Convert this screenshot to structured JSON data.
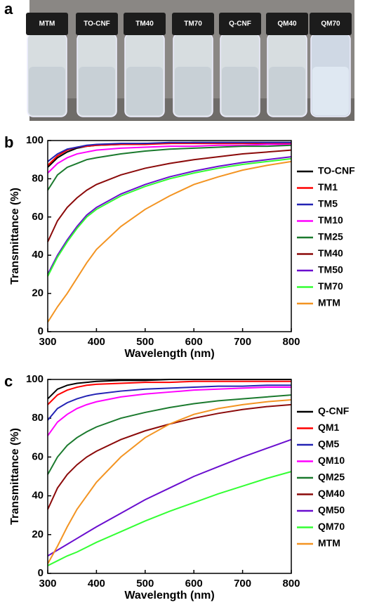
{
  "photo": {
    "panel_label": "a",
    "vials": [
      "MTM",
      "TO-CNF",
      "TM40",
      "TM70",
      "Q-CNF",
      "QM40",
      "QM70"
    ]
  },
  "chart_data": [
    {
      "type": "line",
      "panel_label": "b",
      "x_label": "Wavelength (nm)",
      "y_label": "Transmittance (%)",
      "xlim": [
        300,
        800
      ],
      "ylim": [
        0,
        100
      ],
      "xticks": [
        300,
        400,
        500,
        600,
        700,
        800
      ],
      "yticks": [
        0,
        20,
        40,
        60,
        80,
        100
      ],
      "grid": false,
      "legend": "right",
      "x": [
        300,
        320,
        340,
        360,
        380,
        400,
        450,
        500,
        550,
        600,
        650,
        700,
        750,
        800
      ],
      "series": [
        {
          "name": "TO-CNF",
          "color": "#000000",
          "values": [
            86,
            91,
            94,
            96,
            97,
            97.5,
            98,
            98.5,
            98.5,
            99,
            99,
            99,
            99,
            99
          ]
        },
        {
          "name": "TM1",
          "color": "#ff0000",
          "values": [
            87,
            92,
            95,
            96.5,
            97,
            97.5,
            98,
            98,
            98.5,
            98.5,
            98.5,
            98.5,
            98.5,
            98.5
          ]
        },
        {
          "name": "TM5",
          "color": "#2323b4",
          "values": [
            89,
            93,
            95.5,
            96.5,
            97.5,
            98,
            98.5,
            98.5,
            99,
            99,
            99,
            99,
            99,
            99
          ]
        },
        {
          "name": "TM10",
          "color": "#ff00ff",
          "values": [
            83,
            88,
            91,
            93,
            94,
            95,
            96,
            96.5,
            97,
            97,
            97.5,
            97.5,
            98,
            98
          ]
        },
        {
          "name": "TM25",
          "color": "#1b7a2e",
          "values": [
            74,
            82,
            86,
            88,
            90,
            91,
            93,
            94.5,
            95.5,
            96,
            96.5,
            97,
            97,
            97.5
          ]
        },
        {
          "name": "TM40",
          "color": "#8b0a0a",
          "values": [
            47,
            58,
            65,
            70,
            74,
            77,
            82,
            85.5,
            88,
            90,
            91.5,
            93,
            94,
            95
          ]
        },
        {
          "name": "TM50",
          "color": "#6a0ecf",
          "values": [
            30,
            40,
            48,
            55,
            61,
            65,
            72,
            77,
            81,
            84,
            86.5,
            88.5,
            90,
            91.5
          ]
        },
        {
          "name": "TM70",
          "color": "#33ff33",
          "values": [
            29,
            39,
            47,
            54,
            60,
            64,
            71,
            76,
            80,
            83,
            85.5,
            87.5,
            89,
            90.5
          ]
        },
        {
          "name": "MTM",
          "color": "#f39422",
          "values": [
            5,
            13,
            20,
            28,
            36,
            43,
            55,
            64,
            71,
            77,
            81,
            84.5,
            87,
            89
          ]
        }
      ]
    },
    {
      "type": "line",
      "panel_label": "c",
      "x_label": "Wavelength (nm)",
      "y_label": "Transmittance (%)",
      "xlim": [
        300,
        800
      ],
      "ylim": [
        0,
        100
      ],
      "xticks": [
        300,
        400,
        500,
        600,
        700,
        800
      ],
      "yticks": [
        0,
        20,
        40,
        60,
        80,
        100
      ],
      "grid": false,
      "legend": "right",
      "x": [
        300,
        320,
        340,
        360,
        380,
        400,
        450,
        500,
        550,
        600,
        650,
        700,
        750,
        800
      ],
      "series": [
        {
          "name": "Q-CNF",
          "color": "#000000",
          "values": [
            90,
            95,
            97,
            98,
            98.5,
            99,
            99.5,
            99.5,
            100,
            100,
            100,
            100,
            100,
            100
          ]
        },
        {
          "name": "QM1",
          "color": "#ff0000",
          "values": [
            87,
            92,
            94.5,
            96,
            97,
            97.5,
            98,
            98.5,
            98.5,
            99,
            99,
            99,
            99,
            99
          ]
        },
        {
          "name": "QM5",
          "color": "#2323b4",
          "values": [
            79,
            85,
            88,
            90,
            91.5,
            92.5,
            94,
            95,
            95.5,
            96,
            96.5,
            96.5,
            97,
            97
          ]
        },
        {
          "name": "QM10",
          "color": "#ff00ff",
          "values": [
            71,
            78,
            82,
            85,
            87,
            88.5,
            91,
            92.5,
            93.5,
            94.5,
            95,
            95.5,
            96,
            96
          ]
        },
        {
          "name": "QM25",
          "color": "#1b7a2e",
          "values": [
            51,
            60,
            66,
            70,
            73,
            75.5,
            80,
            83,
            85.5,
            87.5,
            89,
            90,
            91,
            92
          ]
        },
        {
          "name": "QM40",
          "color": "#8b0a0a",
          "values": [
            33,
            44,
            51,
            56,
            60,
            63,
            69,
            73.5,
            77,
            80,
            82.5,
            84.5,
            86,
            87
          ]
        },
        {
          "name": "QM50",
          "color": "#6a0ecf",
          "values": [
            9,
            12,
            15,
            18,
            21,
            24,
            31,
            38,
            44,
            50,
            55,
            60,
            64.5,
            69
          ]
        },
        {
          "name": "QM70",
          "color": "#33ff33",
          "values": [
            4,
            6.5,
            9,
            11,
            13.5,
            16,
            21.5,
            27,
            32,
            36.5,
            41,
            45,
            49,
            52.5
          ]
        },
        {
          "name": "MTM",
          "color": "#f39422",
          "values": [
            5,
            14,
            24,
            33,
            40,
            47,
            60,
            70,
            77,
            82,
            85,
            87,
            88.5,
            89.5
          ]
        }
      ]
    }
  ]
}
